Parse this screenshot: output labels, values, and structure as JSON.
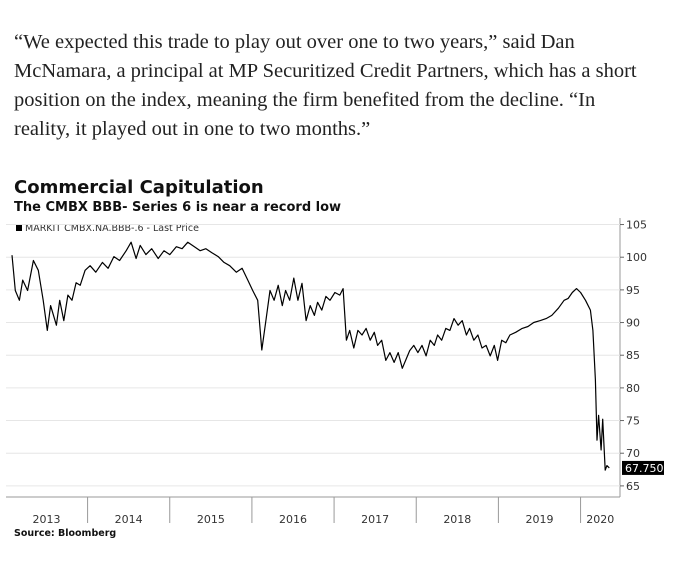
{
  "article": {
    "lines": [
      "“We expected this trade to play out over one to two years,” said Dan",
      "McNamara, a principal at MP Securitized Credit Partners, which has a short",
      "position on the index, meaning the firm benefited from the decline. “In",
      "reality, it played out in one to two months.”"
    ]
  },
  "chart_data": {
    "type": "line",
    "title": "Commercial Capitulation",
    "subtitle": "The CMBX BBB- Series 6 is near a record low",
    "source": "Source: Bloomberg",
    "x": [
      2013.08,
      2013.12,
      2013.17,
      2013.21,
      2013.27,
      2013.34,
      2013.4,
      2013.46,
      2013.51,
      2013.55,
      2013.62,
      2013.66,
      2013.71,
      2013.76,
      2013.81,
      2013.86,
      2013.91,
      2013.97,
      2014.03,
      2014.1,
      2014.18,
      2014.25,
      2014.32,
      2014.39,
      2014.47,
      2014.53,
      2014.59,
      2014.64,
      2014.71,
      2014.78,
      2014.86,
      2014.93,
      2015.0,
      2015.08,
      2015.15,
      2015.22,
      2015.3,
      2015.37,
      2015.44,
      2015.51,
      2015.59,
      2015.66,
      2015.73,
      2015.81,
      2015.88,
      2015.95,
      2016.01,
      2016.07,
      2016.12,
      2016.17,
      2016.22,
      2016.27,
      2016.32,
      2016.37,
      2016.41,
      2016.46,
      2016.51,
      2016.56,
      2016.61,
      2016.66,
      2016.71,
      2016.76,
      2016.8,
      2016.85,
      2016.9,
      2016.95,
      2017.01,
      2017.07,
      2017.11,
      2017.15,
      2017.19,
      2017.24,
      2017.29,
      2017.34,
      2017.39,
      2017.44,
      2017.49,
      2017.53,
      2017.58,
      2017.63,
      2017.68,
      2017.73,
      2017.78,
      2017.83,
      2017.88,
      2017.92,
      2017.97,
      2018.02,
      2018.07,
      2018.12,
      2018.17,
      2018.22,
      2018.26,
      2018.31,
      2018.36,
      2018.41,
      2018.46,
      2018.51,
      2018.56,
      2018.61,
      2018.65,
      2018.7,
      2018.75,
      2018.8,
      2018.85,
      2018.9,
      2018.95,
      2018.99,
      2019.04,
      2019.09,
      2019.14,
      2019.21,
      2019.29,
      2019.36,
      2019.43,
      2019.51,
      2019.58,
      2019.65,
      2019.73,
      2019.8,
      2019.85,
      2019.9,
      2019.95,
      2020.0,
      2020.06,
      2020.12,
      2020.15,
      2020.18,
      2020.2,
      2020.22,
      2020.25,
      2020.27,
      2020.3,
      2020.32,
      2020.35
    ],
    "series": [
      {
        "name": "MARKIT CMBX.NA.BBB-.6 - Last Price",
        "color": "#000000",
        "values": [
          100.3,
          94.9,
          93.4,
          96.5,
          94.9,
          99.5,
          98,
          93.4,
          88.8,
          92.6,
          89.6,
          93.4,
          90.3,
          94.2,
          93.4,
          96.1,
          95.7,
          98,
          98.7,
          97.7,
          99.2,
          98.3,
          100.1,
          99.5,
          101,
          102.3,
          99.8,
          101.8,
          100.4,
          101.3,
          99.8,
          101,
          100.4,
          101.6,
          101.3,
          102.3,
          101.6,
          101,
          101.3,
          100.7,
          100.1,
          99.2,
          98.7,
          97.7,
          98.3,
          96.5,
          94.9,
          93.4,
          85.8,
          90.3,
          94.9,
          93.4,
          95.7,
          92.6,
          94.9,
          93.4,
          96.8,
          93.4,
          96,
          90.3,
          92.6,
          91.1,
          93.1,
          91.9,
          94,
          93.4,
          94.6,
          94.2,
          95.2,
          87.3,
          88.8,
          86.1,
          88.8,
          88.1,
          89.1,
          87.3,
          88.5,
          86.5,
          87.3,
          84.2,
          85.4,
          83.9,
          85.4,
          83,
          84.5,
          85.7,
          86.5,
          85.4,
          86.5,
          84.9,
          87.3,
          86.5,
          88.1,
          87.3,
          89.1,
          88.8,
          90.6,
          89.6,
          90.3,
          88.1,
          89.1,
          87.3,
          88.1,
          86.1,
          86.5,
          84.9,
          86.5,
          84.2,
          87.3,
          86.9,
          88.1,
          88.5,
          89.1,
          89.4,
          90,
          90.3,
          90.6,
          91.1,
          92.2,
          93.4,
          93.7,
          94.6,
          95.2,
          94.6,
          93.4,
          91.9,
          88.8,
          81.2,
          72,
          75.8,
          70.5,
          75.2,
          67.4,
          68.1,
          67.75
        ]
      }
    ],
    "annotations": [
      {
        "y": 67.75,
        "label": "67.750"
      }
    ],
    "xlim": [
      2013.08,
      2020.48
    ],
    "ylim": [
      63.3,
      106
    ],
    "xticks": [
      {
        "value": 2013.5,
        "label": "2013"
      },
      {
        "value": 2014.5,
        "label": "2014"
      },
      {
        "value": 2015.5,
        "label": "2015"
      },
      {
        "value": 2016.5,
        "label": "2016"
      },
      {
        "value": 2017.5,
        "label": "2017"
      },
      {
        "value": 2018.5,
        "label": "2018"
      },
      {
        "value": 2019.5,
        "label": "2019"
      },
      {
        "value": 2020.24,
        "label": "2020"
      }
    ],
    "yticks": [
      65,
      70,
      75,
      80,
      85,
      90,
      95,
      100,
      105
    ],
    "grid": true
  }
}
